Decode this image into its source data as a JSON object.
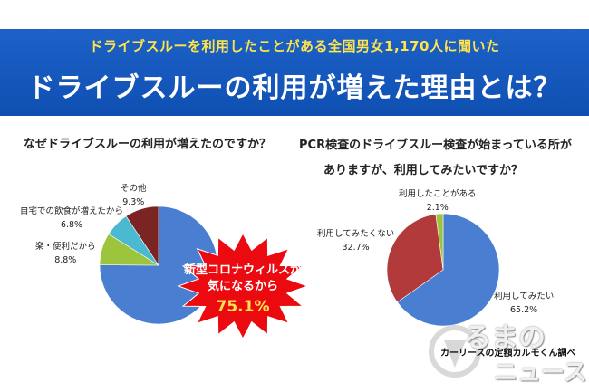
{
  "header": {
    "subtitle": "ドライブスルーを利用したことがある全国男女1,170人に聞いた",
    "title": "ドライブスルーの利用が増えた理由とは？"
  },
  "colors": {
    "banner": "#1452bd",
    "subtitle": "#ffe44a",
    "blue": "#4a7ed0",
    "red": "#b23a3a",
    "green": "#9cc43c",
    "teal": "#4bbad0",
    "maroon": "#7a2424",
    "burst": "#ea0a10"
  },
  "chart_data": [
    {
      "type": "pie",
      "title": "なぜドライブスルーの利用が増えたのですか？",
      "slices": [
        {
          "label": "新型コロナウィルスが気になるから",
          "value": 75.1,
          "value_label": "75.1%",
          "color": "#4a7ed0"
        },
        {
          "label": "楽・便利だから",
          "value": 8.8,
          "value_label": "8.8%",
          "color": "#9cc43c"
        },
        {
          "label": "自宅での飲食が増えたから",
          "value": 6.8,
          "value_label": "6.8%",
          "color": "#4bbad0"
        },
        {
          "label": "その他",
          "value": 9.3,
          "value_label": "9.3%",
          "color": "#7a2424"
        }
      ],
      "callout": {
        "line1": "新型コロナウィルスが",
        "line2": "気になるから",
        "value": "75.1%"
      }
    },
    {
      "type": "pie",
      "title_line1": "PCR検査のドライブスルー検査が始まっている所が",
      "title_line2": "ありますが、利用してみたいですか？",
      "slices": [
        {
          "label": "利用してみたい",
          "value": 65.2,
          "value_label": "65.2%",
          "color": "#4a7ed0"
        },
        {
          "label": "利用してみたくない",
          "value": 32.7,
          "value_label": "32.7%",
          "color": "#b23a3a"
        },
        {
          "label": "利用したことがある",
          "value": 2.1,
          "value_label": "2.1%",
          "color": "#9cc43c"
        }
      ]
    }
  ],
  "watermark": {
    "logo_line1": "るまの",
    "logo_line2": "ニュース",
    "credit": "カーリースの定額カルモくん調べ"
  }
}
